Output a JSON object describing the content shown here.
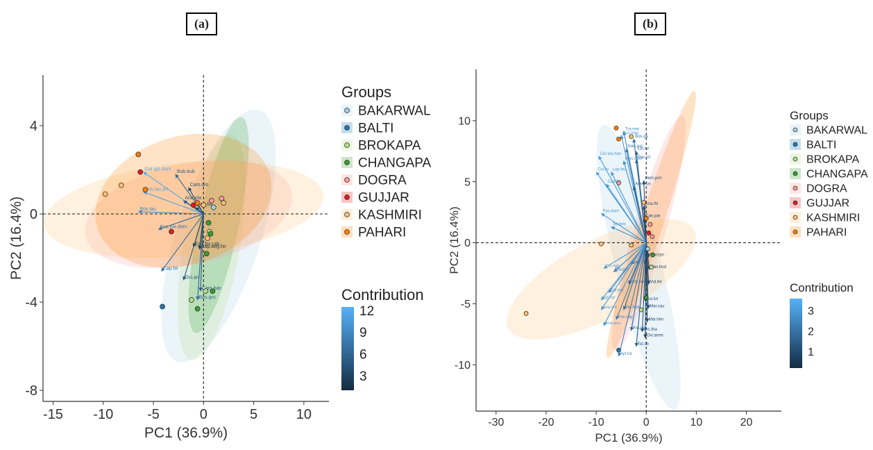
{
  "panels": {
    "a": {
      "label": "(a)",
      "xlabel": "PC1 (36.9%)",
      "ylabel": "PC2 (16.4%)",
      "legend_title": "Groups",
      "contribution_title": "Contribution"
    },
    "b": {
      "label": "(b)",
      "xlabel": "PC1 (36.9%)",
      "ylabel": "PC2 (16.4%)",
      "legend_title": "Groups",
      "contribution_title": "Contribution"
    }
  },
  "chart_data": [
    {
      "type": "scatter",
      "panel": "a",
      "xlabel": "PC1 (36.9%)",
      "ylabel": "PC2 (16.4%)",
      "xlim": [
        -16,
        12.5
      ],
      "ylim": [
        -8.5,
        6.3
      ],
      "xticks": [
        -15,
        -10,
        -5,
        0,
        5,
        10
      ],
      "yticks": [
        -8,
        -4,
        0,
        4
      ],
      "ytick_labels": [
        "-8",
        "-4",
        "0",
        "4"
      ],
      "groups": [
        "BAKARWAL",
        "BALTI",
        "BROKAPA",
        "CHANGAPA",
        "DOGRA",
        "GUJJAR",
        "KASHMIRI",
        "PAHARI"
      ],
      "colors": [
        "#a6cee3",
        "#1f78b4",
        "#b2df8a",
        "#33a02c",
        "#fb9a99",
        "#e31a1c",
        "#fdbf6f",
        "#ff7f00"
      ],
      "ellipses": [
        {
          "group": "BAKARWAL",
          "cx": 1.5,
          "cy": -1.0,
          "rx": 4.2,
          "ry": 6.0,
          "angle": -18
        },
        {
          "group": "BROKAPA",
          "cx": 0.8,
          "cy": -1.5,
          "rx": 2.8,
          "ry": 5.2,
          "angle": -10
        },
        {
          "group": "CHANGAPA",
          "cx": 1.5,
          "cy": -0.5,
          "rx": 2.0,
          "ry": 5.0,
          "angle": -12
        },
        {
          "group": "DOGRA",
          "cx": -1.5,
          "cy": 0.0,
          "rx": 10.5,
          "ry": 2.3,
          "angle": 12
        },
        {
          "group": "KASHMIRI",
          "cx": -2.0,
          "cy": 0.2,
          "rx": 14.0,
          "ry": 2.1,
          "angle": 6
        },
        {
          "group": "PAHARI",
          "cx": -2.0,
          "cy": 0.6,
          "rx": 9.0,
          "ry": 2.9,
          "angle": 18
        }
      ],
      "points": [
        {
          "x": -6.5,
          "y": 2.7,
          "group": "PAHARI"
        },
        {
          "x": -8.2,
          "y": 1.3,
          "group": "KASHMIRI"
        },
        {
          "x": -9.8,
          "y": 0.9,
          "group": "KASHMIRI"
        },
        {
          "x": -6.3,
          "y": 1.9,
          "group": "GUJJAR"
        },
        {
          "x": -5.8,
          "y": 1.1,
          "group": "PAHARI"
        },
        {
          "x": -3.2,
          "y": -0.8,
          "group": "GUJJAR"
        },
        {
          "x": -1.0,
          "y": 0.4,
          "group": "GUJJAR"
        },
        {
          "x": -0.6,
          "y": 0.5,
          "group": "PAHARI"
        },
        {
          "x": 0.0,
          "y": 0.4,
          "group": "KASHMIRI"
        },
        {
          "x": 0.8,
          "y": 0.6,
          "group": "DOGRA"
        },
        {
          "x": 1.0,
          "y": 0.3,
          "group": "BAKARWAL"
        },
        {
          "x": 1.8,
          "y": 0.7,
          "group": "DOGRA"
        },
        {
          "x": 2.0,
          "y": 0.5,
          "group": "KASHMIRI"
        },
        {
          "x": 0.5,
          "y": -0.4,
          "group": "CHANGAPA"
        },
        {
          "x": 0.6,
          "y": -0.8,
          "group": "BROKAPA"
        },
        {
          "x": 0.7,
          "y": -0.9,
          "group": "CHANGAPA"
        },
        {
          "x": 0.4,
          "y": -1.1,
          "group": "KASHMIRI"
        },
        {
          "x": 0.3,
          "y": -1.8,
          "group": "CHANGAPA"
        },
        {
          "x": -4.1,
          "y": -4.2,
          "group": "BALTI"
        },
        {
          "x": -1.2,
          "y": -3.9,
          "group": "BROKAPA"
        },
        {
          "x": -0.6,
          "y": -4.3,
          "group": "CHANGAPA"
        },
        {
          "x": 0.2,
          "y": -3.5,
          "group": "BROKAPA"
        },
        {
          "x": 0.9,
          "y": -3.5,
          "group": "CHANGAPA"
        }
      ],
      "arrows": [
        {
          "label": "Gal.gal.dom",
          "x": -6.0,
          "y": 1.9,
          "c": 12
        },
        {
          "label": "Bos.tau.pri",
          "x": -6.0,
          "y": 1.0,
          "c": 11
        },
        {
          "label": "Bos.tau",
          "x": -6.5,
          "y": 0.1,
          "c": 9
        },
        {
          "label": "Bub.bub",
          "x": -2.8,
          "y": 1.8,
          "c": 6
        },
        {
          "label": "Ana.pla",
          "x": -2.0,
          "y": 0.6,
          "c": 5
        },
        {
          "label": "Ana.pla.dom",
          "x": -4.5,
          "y": -0.7,
          "c": 7
        },
        {
          "label": "Equ.fer",
          "x": -0.8,
          "y": 0.3,
          "c": 3
        },
        {
          "label": "Equ.fer.cab",
          "x": -1.0,
          "y": -1.5,
          "c": 2
        },
        {
          "label": "Cap.hir",
          "x": -4.2,
          "y": -2.6,
          "c": 7
        },
        {
          "label": "Ovi.ari",
          "x": -2.0,
          "y": -3.0,
          "c": 5
        },
        {
          "label": "Cap.aeg.hir",
          "x": -0.4,
          "y": -1.6,
          "c": 2
        },
        {
          "label": "Bos.gru",
          "x": -0.6,
          "y": -3.9,
          "c": 6
        },
        {
          "label": "Cam.bac",
          "x": -0.3,
          "y": -3.5,
          "c": 5
        },
        {
          "label": "Cam.dro",
          "x": -1.5,
          "y": 1.2,
          "c": 4
        }
      ],
      "contribution": {
        "ticks": [
          3,
          6,
          9,
          12
        ],
        "range": [
          1,
          12.5
        ]
      }
    },
    {
      "type": "scatter",
      "panel": "b",
      "xlabel": "PC1 (36.9%)",
      "ylabel": "PC2 (16.4%)",
      "xlim": [
        -34,
        27
      ],
      "ylim": [
        -13.8,
        14.2
      ],
      "xticks": [
        -30,
        -20,
        -10,
        0,
        10,
        20
      ],
      "yticks": [
        -10,
        -5,
        0,
        5,
        10
      ],
      "ytick_labels": [
        "-10",
        "-5",
        "0",
        "5",
        "10"
      ],
      "groups": [
        "BAKARWAL",
        "BALTI",
        "BROKAPA",
        "CHANGAPA",
        "DOGRA",
        "GUJJAR",
        "KASHMIRI",
        "PAHARI"
      ],
      "colors": [
        "#a6cee3",
        "#1f78b4",
        "#b2df8a",
        "#33a02c",
        "#fb9a99",
        "#e31a1c",
        "#fdbf6f",
        "#ff7f00"
      ],
      "ellipses": [
        {
          "group": "BAKARWAL",
          "cx": -1.5,
          "cy": -2.0,
          "rx": 4.6,
          "ry": 12.0,
          "angle": 14
        },
        {
          "group": "DOGRA",
          "cx": 0.5,
          "cy": 0.8,
          "rx": 3.2,
          "ry": 10.0,
          "angle": -16
        },
        {
          "group": "KASHMIRI",
          "cx": -9.0,
          "cy": -3.0,
          "rx": 21.0,
          "ry": 3.2,
          "angle": 28
        },
        {
          "group": "PAHARI",
          "cx": 1.0,
          "cy": 1.5,
          "rx": 2.3,
          "ry": 11.5,
          "angle": -18
        }
      ],
      "points": [
        {
          "x": -6.0,
          "y": 9.4,
          "group": "PAHARI"
        },
        {
          "x": -5.5,
          "y": 8.5,
          "group": "PAHARI"
        },
        {
          "x": -3.0,
          "y": 8.7,
          "group": "KASHMIRI"
        },
        {
          "x": -5.5,
          "y": 4.9,
          "group": "DOGRA"
        },
        {
          "x": -0.5,
          "y": 3.3,
          "group": "KASHMIRI"
        },
        {
          "x": 0.0,
          "y": 2.0,
          "group": "PAHARI"
        },
        {
          "x": 0.8,
          "y": 1.5,
          "group": "DOGRA"
        },
        {
          "x": 0.5,
          "y": 0.8,
          "group": "GUJJAR"
        },
        {
          "x": 1.2,
          "y": 0.5,
          "group": "DOGRA"
        },
        {
          "x": -3.0,
          "y": -0.2,
          "group": "KASHMIRI"
        },
        {
          "x": 0.3,
          "y": -0.5,
          "group": "BAKARWAL"
        },
        {
          "x": 1.3,
          "y": -1.0,
          "group": "CHANGAPA"
        },
        {
          "x": 1.0,
          "y": -2.0,
          "group": "BROKAPA"
        },
        {
          "x": -9.0,
          "y": -0.1,
          "group": "KASHMIRI"
        },
        {
          "x": -24.0,
          "y": -5.8,
          "group": "KASHMIRI"
        },
        {
          "x": -5.5,
          "y": -8.8,
          "group": "BALTI"
        },
        {
          "x": 0.0,
          "y": -4.5,
          "group": "CHANGAPA"
        },
        {
          "x": -1.0,
          "y": -5.5,
          "group": "BROKAPA"
        }
      ],
      "arrows": [
        {
          "label": "Tra.mel",
          "x": -4.5,
          "y": 9.1,
          "c": 2.5
        },
        {
          "label": "Puc.mac",
          "x": -5.0,
          "y": 8.8,
          "c": 2.8
        },
        {
          "label": "Bos.ga",
          "x": -2.5,
          "y": 8.5,
          "c": 2.0
        },
        {
          "label": "Naw.gar",
          "x": -4.0,
          "y": 7.7,
          "c": 2.4
        },
        {
          "label": "Lar.lar",
          "x": -2.0,
          "y": 7.5,
          "c": 1.8
        },
        {
          "label": "Cer.ela.han",
          "x": -9.5,
          "y": 7.1,
          "c": 3.1
        },
        {
          "label": "Mos.mos",
          "x": -4.5,
          "y": 6.7,
          "c": 2.6
        },
        {
          "label": "Pav.crt",
          "x": -2.0,
          "y": 6.8,
          "c": 1.8
        },
        {
          "label": "Col.liv",
          "x": -10.0,
          "y": 5.8,
          "c": 3.2
        },
        {
          "label": "Lop.leu",
          "x": -7.0,
          "y": 5.8,
          "c": 2.9
        },
        {
          "label": "Cap.fal",
          "x": -8.0,
          "y": 4.8,
          "c": 2.9
        },
        {
          "label": "Ara.mun",
          "x": -2.5,
          "y": 4.6,
          "c": 1.6
        },
        {
          "label": "Hem.jem",
          "x": -0.5,
          "y": 5.1,
          "c": 1.2
        },
        {
          "label": "Ana.thi",
          "x": -0.5,
          "y": 3.0,
          "c": 1.0
        },
        {
          "label": "Pas.dom",
          "x": -9.0,
          "y": 2.4,
          "c": 3.0
        },
        {
          "label": "Tel.him",
          "x": -7.0,
          "y": 1.3,
          "c": 2.7
        },
        {
          "label": "Can.par",
          "x": -0.4,
          "y": 2.0,
          "c": 0.9
        },
        {
          "label": "Col.nup",
          "x": -8.5,
          "y": -2.1,
          "c": 3.0
        },
        {
          "label": "Bat.pyr",
          "x": -6.5,
          "y": -2.4,
          "c": 2.5
        },
        {
          "label": "Och.hen",
          "x": -3.5,
          "y": -3.4,
          "c": 1.8
        },
        {
          "label": "Aqu.nip",
          "x": -3.0,
          "y": -1.8,
          "c": 1.5
        },
        {
          "label": "Pan.lyn",
          "x": 0.5,
          "y": -1.2,
          "c": 0.8
        },
        {
          "label": "Pan.hod",
          "x": 0.6,
          "y": -2.2,
          "c": 0.9
        },
        {
          "label": "Vul.fer",
          "x": 0.5,
          "y": -3.4,
          "c": 0.9
        },
        {
          "label": "Cor.lon",
          "x": -7.5,
          "y": -4.1,
          "c": 2.8
        },
        {
          "label": "Ayt.nyr",
          "x": -9.0,
          "y": -4.7,
          "c": 3.1
        },
        {
          "label": "Lut.lut",
          "x": -0.2,
          "y": -4.8,
          "c": 1.0
        },
        {
          "label": "Ana.cre",
          "x": -9.0,
          "y": -5.5,
          "c": 3.0
        },
        {
          "label": "Par.hod",
          "x": -4.5,
          "y": -5.5,
          "c": 2.0
        },
        {
          "label": "Mar.cau",
          "x": 0.4,
          "y": -5.4,
          "c": 1.0
        },
        {
          "label": "Ana.acu",
          "x": -8.5,
          "y": -6.8,
          "c": 2.9
        },
        {
          "label": "Pse.nay",
          "x": -6.0,
          "y": -6.3,
          "c": 2.4
        },
        {
          "label": "Mar.him",
          "x": 0.2,
          "y": -6.5,
          "c": 1.0
        },
        {
          "label": "Pro.pic",
          "x": -3.0,
          "y": -7.2,
          "c": 1.8
        },
        {
          "label": "Urs.tha",
          "x": -0.8,
          "y": -7.3,
          "c": 1.2
        },
        {
          "label": "Ovi.amm",
          "x": -0.2,
          "y": -7.8,
          "c": 1.0
        },
        {
          "label": "Tet.tib",
          "x": -2.0,
          "y": -8.5,
          "c": 1.5
        },
        {
          "label": "Ayt.ful",
          "x": -5.5,
          "y": -9.3,
          "c": 2.4
        }
      ],
      "contribution": {
        "ticks": [
          1,
          2,
          3
        ],
        "range": [
          0.2,
          3.6
        ]
      }
    }
  ]
}
